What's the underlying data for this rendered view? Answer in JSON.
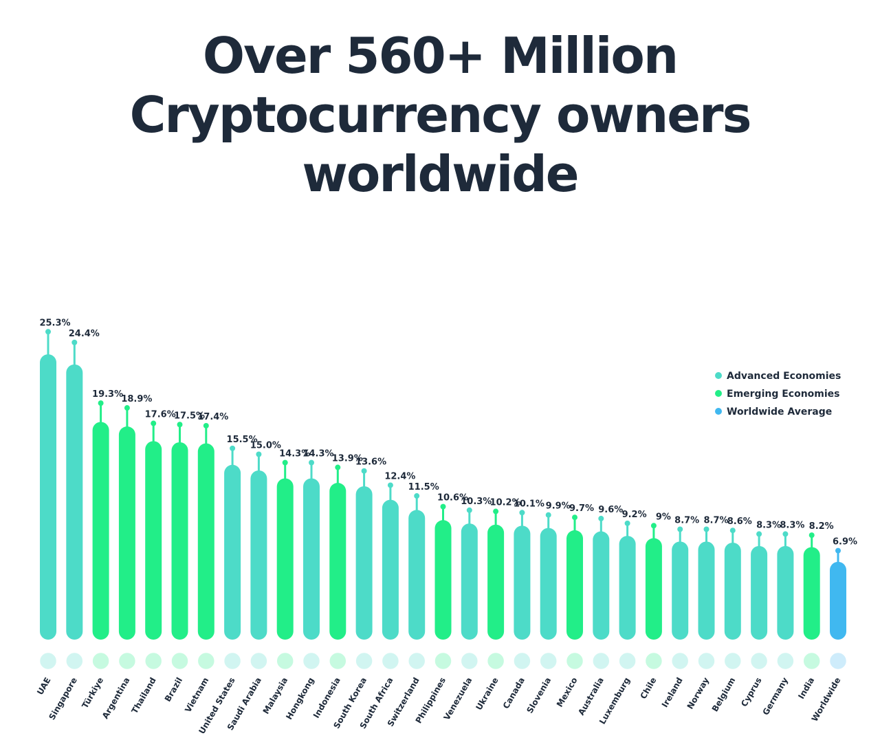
{
  "chart_data": {
    "type": "bar",
    "title": [
      "Over 560+ Million",
      "Cryptocurrency owners",
      "worldwide"
    ],
    "categories": [
      "UAE",
      "Singapore",
      "Türkiye",
      "Argentina",
      "Thailand",
      "Brazil",
      "Vietnam",
      "United States",
      "Saudi Arabia",
      "Malaysia",
      "Hongkong",
      "Indonesia",
      "South Korea",
      "South Africa",
      "Switzerland",
      "Philippines",
      "Venezuela",
      "Ukraine",
      "Canada",
      "Slovenia",
      "Mexico",
      "Australia",
      "Luxemburg",
      "Chile",
      "Ireland",
      "Norway",
      "Belgium",
      "Cyprus",
      "Germany",
      "India",
      "Worldwide"
    ],
    "values": [
      25.3,
      24.4,
      19.3,
      18.9,
      17.6,
      17.5,
      17.4,
      15.5,
      15.0,
      14.3,
      14.3,
      13.9,
      13.6,
      12.4,
      11.5,
      10.6,
      10.3,
      10.2,
      10.1,
      9.9,
      9.7,
      9.6,
      9.2,
      9.0,
      8.7,
      8.7,
      8.6,
      8.3,
      8.3,
      8.2,
      6.9
    ],
    "value_labels": [
      "25.3%",
      "24.4%",
      "19.3%",
      "18.9%",
      "17.6%",
      "17.5%",
      "17.4%",
      "15.5%",
      "15.0%",
      "14.3%",
      "14.3%",
      "13.9%",
      "13.6%",
      "12.4%",
      "11.5%",
      "10.6%",
      "10.3%",
      "10.2%",
      "10.1%",
      "9.9%",
      "9.7%",
      "9.6%",
      "9.2%",
      "9%",
      "8.7%",
      "8.7%",
      "8.6%",
      "8.3%",
      "8.3%",
      "8.2%",
      "6.9%"
    ],
    "groups": [
      "advanced",
      "advanced",
      "emerging",
      "emerging",
      "emerging",
      "emerging",
      "emerging",
      "advanced",
      "advanced",
      "emerging",
      "advanced",
      "emerging",
      "advanced",
      "advanced",
      "advanced",
      "emerging",
      "advanced",
      "emerging",
      "advanced",
      "advanced",
      "emerging",
      "advanced",
      "advanced",
      "emerging",
      "advanced",
      "advanced",
      "advanced",
      "advanced",
      "advanced",
      "emerging",
      "worldwide"
    ],
    "series": [
      {
        "key": "advanced",
        "name": "Advanced Economies",
        "color": "#4ddbc8"
      },
      {
        "key": "emerging",
        "name": "Emerging Economies",
        "color": "#22ee88"
      },
      {
        "key": "worldwide",
        "name": "Worldwide Average",
        "color": "#40b8f0"
      }
    ],
    "legend_position": "top-right",
    "ylabel": "",
    "xlabel": "",
    "ylim": [
      0,
      26
    ]
  }
}
